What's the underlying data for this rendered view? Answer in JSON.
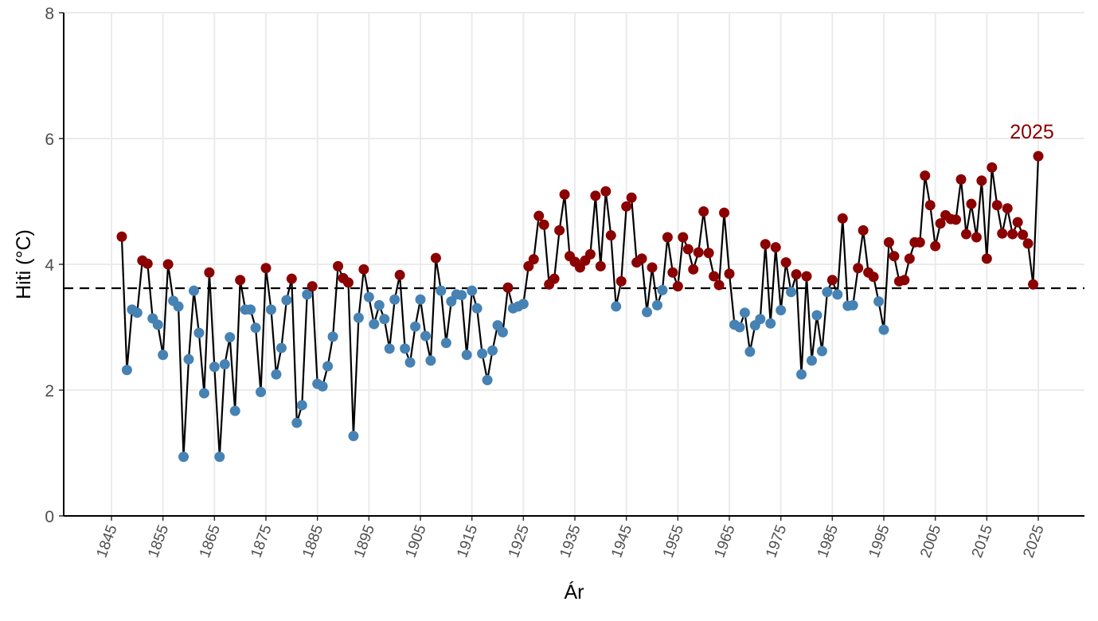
{
  "chart_data": {
    "type": "line",
    "title": "",
    "xlabel": "Ár",
    "ylabel": "Hiti (°C)",
    "xlim": [
      1838,
      2033
    ],
    "ylim": [
      0,
      8
    ],
    "x_ticks": [
      1845,
      1855,
      1865,
      1875,
      1885,
      1895,
      1905,
      1915,
      1925,
      1935,
      1945,
      1955,
      1965,
      1975,
      1985,
      1995,
      2005,
      2015,
      2025
    ],
    "y_ticks": [
      0,
      2,
      4,
      6,
      8
    ],
    "grid": true,
    "reference_line": {
      "value": 3.62,
      "style": "dashed"
    },
    "colors": {
      "above": "#8B0000",
      "below": "#4682B4",
      "line": "#000000",
      "annotation": "#8B0000"
    },
    "annotation": {
      "text": "2025",
      "x": 2025
    },
    "x": [
      1847,
      1848,
      1849,
      1850,
      1851,
      1852,
      1853,
      1854,
      1855,
      1856,
      1857,
      1858,
      1859,
      1860,
      1861,
      1862,
      1863,
      1864,
      1865,
      1866,
      1867,
      1868,
      1869,
      1870,
      1871,
      1872,
      1873,
      1874,
      1875,
      1876,
      1877,
      1878,
      1879,
      1880,
      1881,
      1882,
      1883,
      1884,
      1885,
      1886,
      1887,
      1888,
      1889,
      1890,
      1891,
      1892,
      1893,
      1894,
      1895,
      1896,
      1897,
      1898,
      1899,
      1900,
      1901,
      1902,
      1903,
      1904,
      1905,
      1906,
      1907,
      1908,
      1909,
      1910,
      1911,
      1912,
      1913,
      1914,
      1915,
      1916,
      1917,
      1918,
      1919,
      1920,
      1921,
      1922,
      1923,
      1924,
      1925,
      1926,
      1927,
      1928,
      1929,
      1930,
      1931,
      1932,
      1933,
      1934,
      1935,
      1936,
      1937,
      1938,
      1939,
      1940,
      1941,
      1942,
      1943,
      1944,
      1945,
      1946,
      1947,
      1948,
      1949,
      1950,
      1951,
      1952,
      1953,
      1954,
      1955,
      1956,
      1957,
      1958,
      1959,
      1960,
      1961,
      1962,
      1963,
      1964,
      1965,
      1966,
      1967,
      1968,
      1969,
      1970,
      1971,
      1972,
      1973,
      1974,
      1975,
      1976,
      1977,
      1978,
      1979,
      1980,
      1981,
      1982,
      1983,
      1984,
      1985,
      1986,
      1987,
      1988,
      1989,
      1990,
      1991,
      1992,
      1993,
      1994,
      1995,
      1996,
      1997,
      1998,
      1999,
      2000,
      2001,
      2002,
      2003,
      2004,
      2005,
      2006,
      2007,
      2008,
      2009,
      2010,
      2011,
      2012,
      2013,
      2014,
      2015,
      2016,
      2017,
      2018,
      2019,
      2020,
      2021,
      2022,
      2023,
      2024,
      2025
    ],
    "y": [
      4.44,
      2.32,
      3.28,
      3.23,
      4.06,
      4.01,
      3.14,
      3.04,
      2.56,
      4.0,
      3.42,
      3.33,
      0.94,
      2.49,
      3.58,
      2.91,
      1.95,
      3.87,
      2.37,
      0.94,
      2.41,
      2.84,
      1.67,
      3.75,
      3.28,
      3.28,
      2.99,
      1.97,
      3.94,
      3.28,
      2.25,
      2.67,
      3.43,
      3.77,
      1.48,
      1.76,
      3.52,
      3.65,
      2.1,
      2.06,
      2.38,
      2.85,
      3.97,
      3.78,
      3.71,
      1.27,
      3.15,
      3.92,
      3.48,
      3.05,
      3.35,
      3.13,
      2.66,
      3.44,
      3.83,
      2.66,
      2.44,
      3.01,
      3.44,
      2.86,
      2.47,
      4.1,
      3.58,
      2.75,
      3.41,
      3.52,
      3.51,
      2.56,
      3.58,
      3.3,
      2.58,
      2.16,
      2.63,
      3.03,
      2.92,
      3.63,
      3.3,
      3.33,
      3.37,
      3.97,
      4.08,
      4.77,
      4.63,
      3.68,
      3.77,
      4.54,
      5.11,
      4.13,
      4.04,
      3.95,
      4.06,
      4.16,
      5.09,
      3.97,
      5.16,
      4.46,
      3.33,
      3.73,
      4.92,
      5.06,
      4.03,
      4.09,
      3.24,
      3.95,
      3.35,
      3.59,
      4.43,
      3.87,
      3.65,
      4.43,
      4.24,
      3.92,
      4.19,
      4.84,
      4.18,
      3.81,
      3.67,
      4.82,
      3.85,
      3.04,
      3.0,
      3.23,
      2.61,
      3.03,
      3.13,
      4.32,
      3.06,
      4.27,
      3.27,
      4.03,
      3.56,
      3.84,
      2.25,
      3.81,
      2.47,
      3.19,
      2.62,
      3.56,
      3.75,
      3.52,
      4.73,
      3.34,
      3.35,
      3.94,
      4.54,
      3.87,
      3.8,
      3.41,
      2.96,
      4.35,
      4.13,
      3.73,
      3.75,
      4.09,
      4.35,
      4.35,
      5.41,
      4.94,
      4.29,
      4.65,
      4.78,
      4.72,
      4.71,
      5.35,
      4.48,
      4.96,
      4.43,
      5.33,
      4.09,
      5.54,
      4.94,
      4.49,
      4.89,
      4.48,
      4.67,
      4.47,
      4.33,
      3.68,
      5.72
    ]
  }
}
